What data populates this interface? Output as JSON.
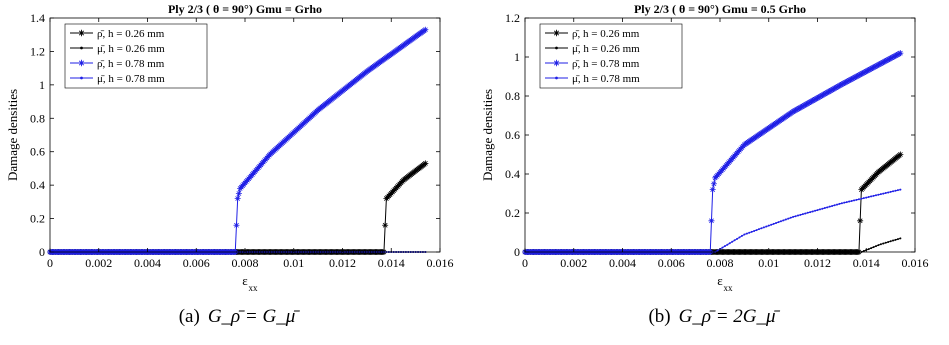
{
  "chart_data": [
    {
      "type": "line",
      "title": "Ply 2/3 ( θ = 90°) Gmu = Grho",
      "xlabel": "ε",
      "xlabel_sub": "xx",
      "ylabel": "Damage densities",
      "xlim": [
        0,
        0.016
      ],
      "ylim": [
        0,
        1.4
      ],
      "xticks": [
        0,
        0.002,
        0.004,
        0.006,
        0.008,
        0.01,
        0.012,
        0.014,
        0.016
      ],
      "yticks": [
        0,
        0.2,
        0.4,
        0.6,
        0.8,
        1,
        1.2,
        1.4
      ],
      "grid": false,
      "legend_position": "top-left",
      "series": [
        {
          "name": "ρ̄, h = 0.26 mm",
          "color": "#000000",
          "marker": "asterisk",
          "x": [
            0,
            0.0137,
            0.0138,
            0.0145,
            0.0154
          ],
          "y": [
            0,
            0,
            0.32,
            0.43,
            0.53
          ]
        },
        {
          "name": "μ̄, h = 0.26 mm",
          "color": "#000000",
          "marker": "dot",
          "x": [
            0,
            0.0154
          ],
          "y": [
            0,
            0
          ]
        },
        {
          "name": "ρ̄, h = 0.78 mm",
          "color": "#1f1fe6",
          "marker": "asterisk",
          "x": [
            0,
            0.0076,
            0.0077,
            0.0078,
            0.009,
            0.011,
            0.013,
            0.0154
          ],
          "y": [
            0,
            0,
            0.32,
            0.38,
            0.58,
            0.85,
            1.08,
            1.33
          ]
        },
        {
          "name": "μ̄, h = 0.78 mm",
          "color": "#1f1fe6",
          "marker": "dot",
          "x": [
            0,
            0.0154
          ],
          "y": [
            0,
            0
          ]
        }
      ],
      "caption_label": "(a)",
      "caption_formula": "G_ρ̄ = G_μ̄"
    },
    {
      "type": "line",
      "title": "Ply 2/3 ( θ = 90°) Gmu = 0.5 Grho",
      "xlabel": "ε",
      "xlabel_sub": "xx",
      "ylabel": "Damage densities",
      "xlim": [
        0,
        0.016
      ],
      "ylim": [
        0,
        1.2
      ],
      "xticks": [
        0,
        0.002,
        0.004,
        0.006,
        0.008,
        0.01,
        0.012,
        0.014,
        0.016
      ],
      "yticks": [
        0,
        0.2,
        0.4,
        0.6,
        0.8,
        1,
        1.2
      ],
      "grid": false,
      "legend_position": "top-left",
      "series": [
        {
          "name": "ρ̄, h = 0.26 mm",
          "color": "#000000",
          "marker": "asterisk",
          "x": [
            0,
            0.0137,
            0.0138,
            0.0145,
            0.0154
          ],
          "y": [
            0,
            0,
            0.32,
            0.41,
            0.5
          ]
        },
        {
          "name": "μ̄, h = 0.26 mm",
          "color": "#000000",
          "marker": "dot",
          "x": [
            0,
            0.0138,
            0.0146,
            0.0154
          ],
          "y": [
            0,
            0,
            0.04,
            0.07
          ]
        },
        {
          "name": "ρ̄, h = 0.78 mm",
          "color": "#1f1fe6",
          "marker": "asterisk",
          "x": [
            0,
            0.0076,
            0.0077,
            0.0078,
            0.009,
            0.011,
            0.013,
            0.0154
          ],
          "y": [
            0,
            0,
            0.32,
            0.38,
            0.55,
            0.72,
            0.86,
            1.02
          ]
        },
        {
          "name": "μ̄, h = 0.78 mm",
          "color": "#1f1fe6",
          "marker": "dot",
          "x": [
            0,
            0.0078,
            0.009,
            0.011,
            0.013,
            0.0154
          ],
          "y": [
            0,
            0,
            0.09,
            0.18,
            0.25,
            0.32
          ]
        }
      ],
      "caption_label": "(b)",
      "caption_formula": "G_ρ̄ = 2G_μ̄"
    }
  ]
}
